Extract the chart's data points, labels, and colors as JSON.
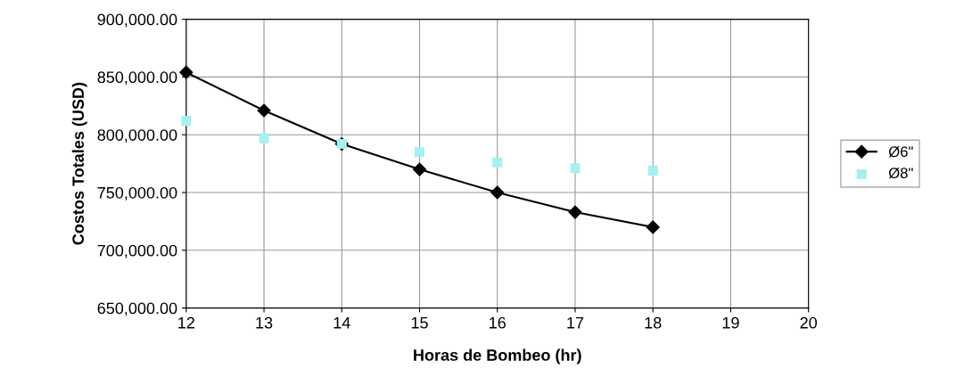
{
  "chart_data": {
    "type": "line",
    "xlabel": "Horas de Bombeo (hr)",
    "ylabel": "Costos Totales (USD)",
    "x": [
      12,
      13,
      14,
      15,
      16,
      17,
      18
    ],
    "series": [
      {
        "name": "Ø6\"",
        "color": "#000000",
        "marker": "diamond",
        "line_style": "solid",
        "values": [
          854000,
          821000,
          792000,
          770000,
          750000,
          733000,
          720000
        ]
      },
      {
        "name": "Ø8\"",
        "type": "scatter",
        "color": "#a8f0f0",
        "marker": "square",
        "values": [
          812000,
          797000,
          792000,
          785000,
          776000,
          771000,
          769000
        ]
      }
    ],
    "xlim": [
      12,
      20
    ],
    "xticks": [
      12,
      13,
      14,
      15,
      16,
      17,
      18,
      19,
      20
    ],
    "ylim": [
      650000,
      900000
    ],
    "yticks": [
      {
        "value": 650000,
        "label": "650,000.00"
      },
      {
        "value": 700000,
        "label": "700,000.00"
      },
      {
        "value": 750000,
        "label": "750,000.00"
      },
      {
        "value": 800000,
        "label": "800,000.00"
      },
      {
        "value": 850000,
        "label": "850,000.00"
      },
      {
        "value": 900000,
        "label": "900,000.00"
      }
    ],
    "grid": true,
    "legend": "right"
  }
}
